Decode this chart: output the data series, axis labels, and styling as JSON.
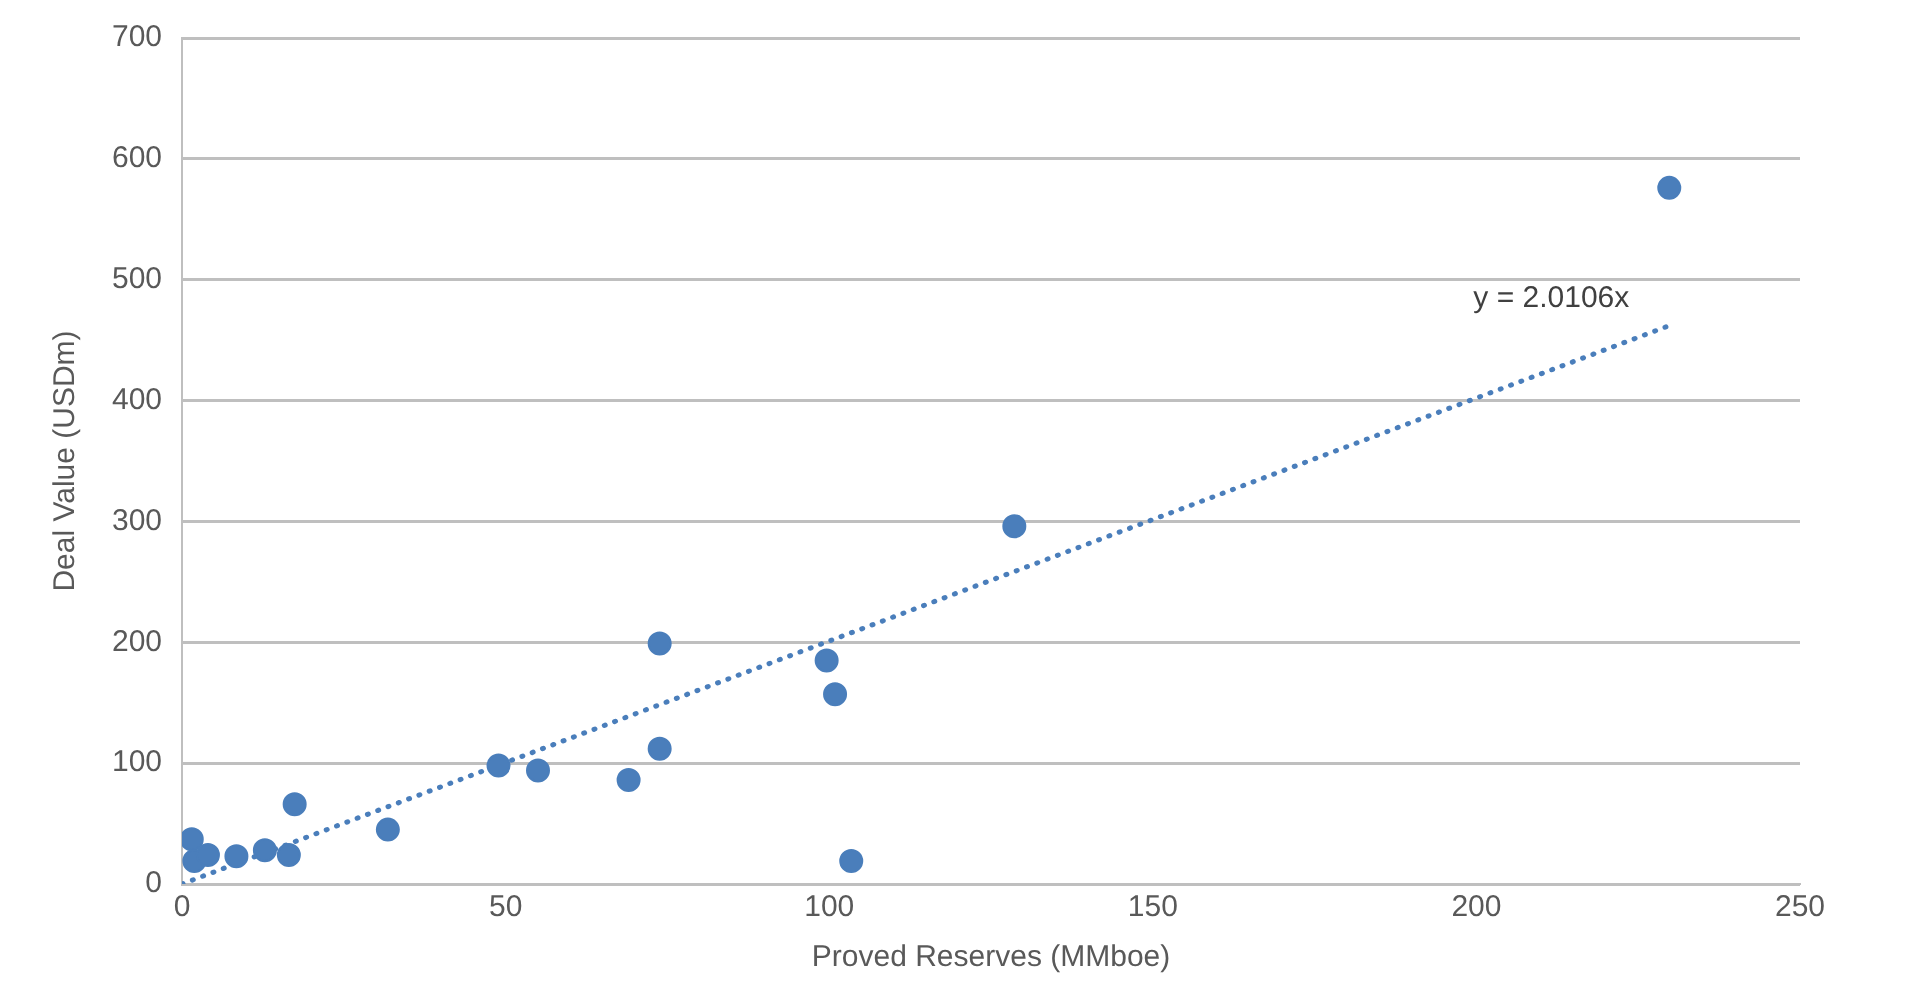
{
  "chart_data": {
    "type": "scatter",
    "xlabel": "Proved Reserves (MMboe)",
    "ylabel": "Deal Value (USDm)",
    "xlim": [
      0,
      250
    ],
    "xticks": [
      0,
      50,
      100,
      150,
      200,
      250
    ],
    "ylim": [
      0,
      700
    ],
    "yticks": [
      0,
      100,
      200,
      300,
      400,
      500,
      600,
      700
    ],
    "grid": "y",
    "legend": false,
    "annotations": [
      "y = 2.0106x"
    ],
    "series": [
      {
        "type": "scatter",
        "color": "#4a7ebb",
        "marker": "circle",
        "x": [
          1.5,
          1.9,
          4,
          8.4,
          12.8,
          16.5,
          17.4,
          31.8,
          48.9,
          55,
          69,
          73.8,
          73.8,
          99.6,
          100.9,
          103.4,
          128.6,
          229.8
        ],
        "values": [
          37,
          19,
          24,
          23,
          28,
          24,
          66,
          45,
          98,
          94,
          86,
          112,
          199,
          185,
          157,
          19,
          296,
          576
        ]
      },
      {
        "type": "line",
        "color": "#4a7ebb",
        "marker": "none",
        "line_style": "dotted",
        "x": [
          0,
          229.8
        ],
        "values": [
          0,
          462
        ]
      }
    ]
  }
}
